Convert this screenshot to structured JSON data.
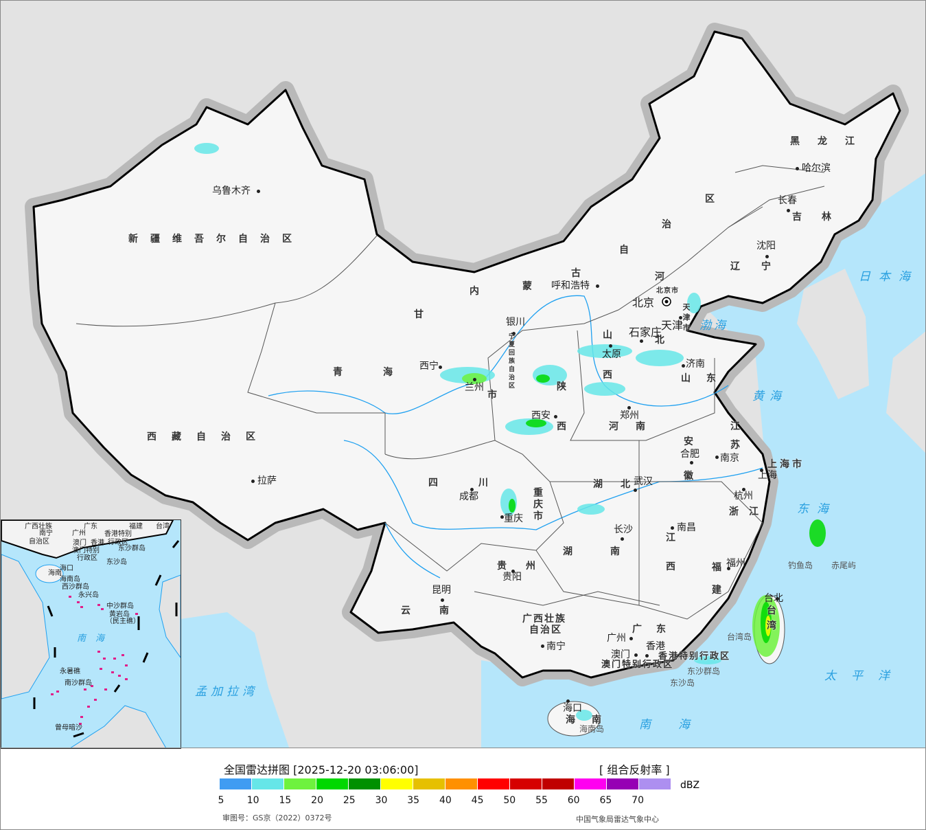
{
  "header": {
    "title": "全国雷达拼图 [2025-12-20 03:06:00]",
    "product": "[ 组合反射率 ]"
  },
  "legend": {
    "unit": "dBZ",
    "ticks": [
      "5",
      "10",
      "15",
      "20",
      "25",
      "30",
      "35",
      "40",
      "45",
      "50",
      "55",
      "60",
      "65",
      "70"
    ],
    "colors": [
      "#409cf2",
      "#66e6e8",
      "#6ef23e",
      "#00d800",
      "#009000",
      "#ffff00",
      "#e6c000",
      "#ff9000",
      "#ff0000",
      "#d60000",
      "#c00000",
      "#ff00f0",
      "#9600b4",
      "#ad8ff0"
    ]
  },
  "footer": {
    "review_number": "审图号：GS京（2022）0372号",
    "credit": "中国气象局雷达气象中心"
  },
  "regions": [
    "新疆维吾尔自治区",
    "西藏自治区",
    "青海",
    "甘",
    "内蒙古自治区",
    "陕西",
    "山西",
    "河北",
    "山东",
    "河南",
    "江苏",
    "安徽",
    "上海市",
    "浙江",
    "湖北",
    "四川",
    "重庆市",
    "贵州",
    "云南",
    "湖南",
    "江西",
    "福建",
    "广东",
    "海南",
    "台湾",
    "黑龙江",
    "吉林",
    "辽宁",
    "市",
    "北京市",
    "天津市",
    "广西壮族",
    "自治区",
    "宁夏回族自治区",
    "香港特别行政区",
    "澳门特别行政区"
  ],
  "cities": [
    "乌鲁木齐",
    "拉萨",
    "西宁",
    "兰州",
    "银川",
    "呼和浩特",
    "北京",
    "天津",
    "石家庄",
    "太原",
    "济南",
    "郑州",
    "西安",
    "合肥",
    "南京",
    "上海",
    "杭州",
    "武汉",
    "成都",
    "重庆",
    "长沙",
    "南昌",
    "福州",
    "贵阳",
    "昆明",
    "南宁",
    "广州",
    "香港",
    "澳门",
    "台北",
    "沈阳",
    "长春",
    "哈尔滨",
    "海口"
  ],
  "islands": [
    "台湾岛",
    "海南岛",
    "东沙群岛",
    "东沙岛",
    "钓鱼岛",
    "赤尾屿"
  ],
  "seas": [
    "渤海",
    "黄海",
    "东海",
    "日本海",
    "太平洋",
    "南海",
    "孟加拉湾"
  ],
  "inset": {
    "labels": [
      "广西壮族",
      "自治区",
      "南宁",
      "广东",
      "广州",
      "澳门",
      "香港",
      "香港特别",
      "行政区",
      "澳门特别",
      "行政区",
      "东沙群岛",
      "东沙岛",
      "海口",
      "海南",
      "海南岛",
      "西沙群岛",
      "永兴岛",
      "中沙群岛",
      "黄岩岛",
      "（民主礁）",
      "南海",
      "永暑礁",
      "南沙群岛",
      "曾母暗沙",
      "台湾",
      "福建"
    ]
  },
  "colors": {
    "sea": "#b5e6fb",
    "land": "#e3e3e3",
    "china": "#f7f7f7",
    "border": "#000000",
    "river": "#1ea0f0"
  }
}
